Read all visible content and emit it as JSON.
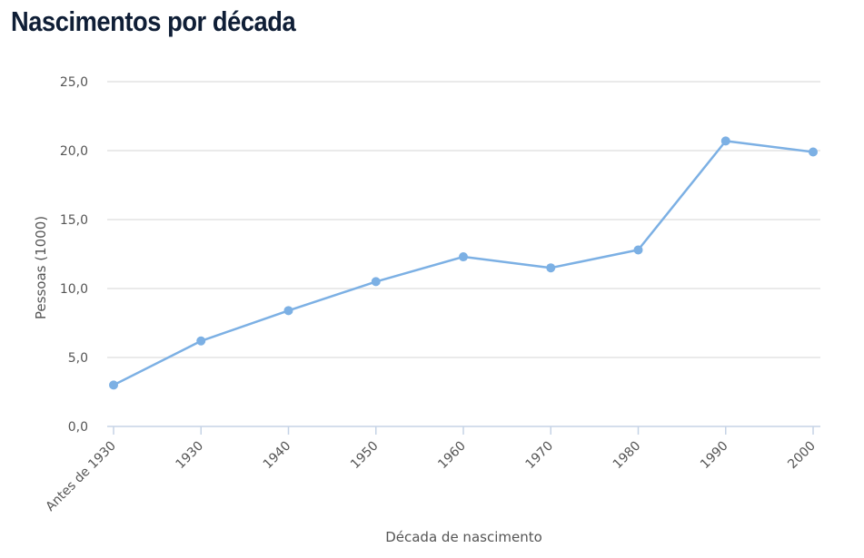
{
  "page": {
    "title": "Nascimentos por década"
  },
  "chart_data": {
    "type": "line",
    "categories": [
      "Antes de 1930",
      "1930",
      "1940",
      "1950",
      "1960",
      "1970",
      "1980",
      "1990",
      "2000"
    ],
    "series": [
      {
        "values": [
          3.0,
          6.2,
          8.4,
          10.5,
          12.3,
          11.5,
          12.8,
          20.7,
          19.9
        ],
        "color": "#7cb0e4"
      }
    ],
    "xlabel": "Década de nascimento",
    "ylabel": "Pessoas (1000)",
    "ylim": [
      0,
      25
    ],
    "yticks": [
      "0,0",
      "5,0",
      "10,0",
      "15,0",
      "20,0",
      "25,0"
    ],
    "grid": true,
    "legend": "none",
    "colors": {
      "grid": "#e3e3e3",
      "axis": "#c5d3e6",
      "title": "#0f1e36"
    }
  }
}
